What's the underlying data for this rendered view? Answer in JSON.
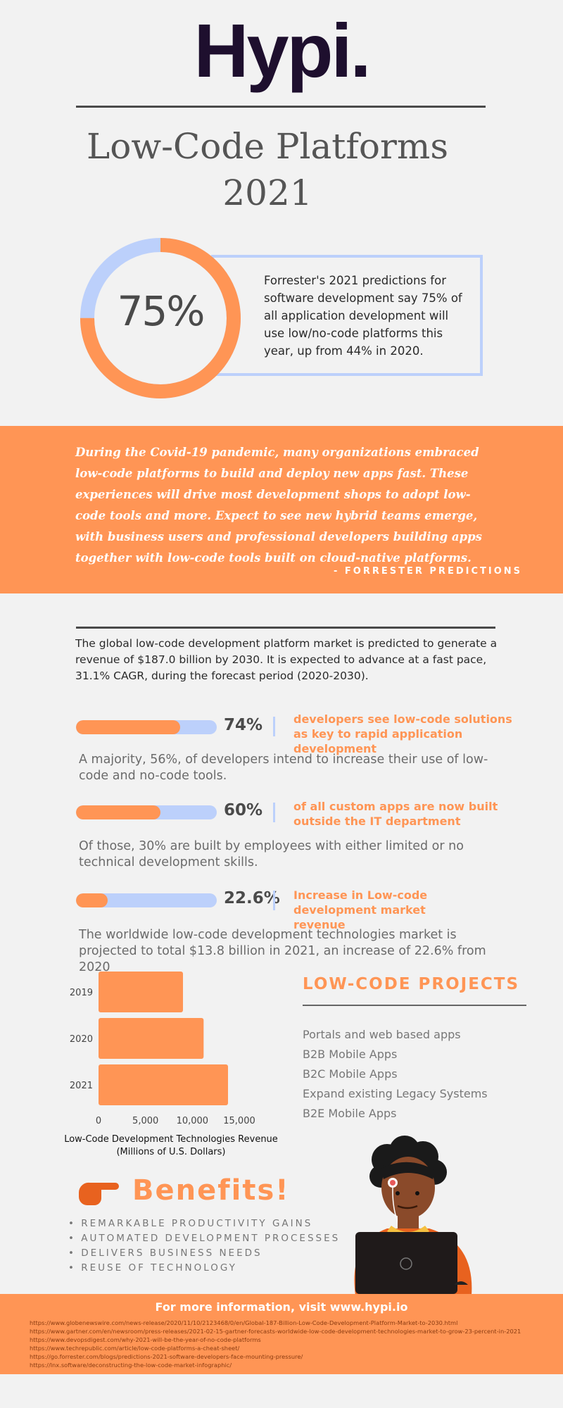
{
  "header": {
    "logo": "Hypi.",
    "title_line1": "Low-Code Platforms",
    "title_line2": "2021"
  },
  "hero_stat": {
    "value": "75%",
    "ring_fraction": 0.75,
    "text": "Forrester's 2021 predictions for software development say 75% of all application development will use low/no-code platforms this year, up from 44% in 2020."
  },
  "quote": {
    "text": "During the Covid-19 pandemic, many organizations embraced low-code platforms to build and deploy new apps fast. These experiences will drive most development shops to adopt low-code tools and more. Expect to see new hybrid teams emerge, with business users and professional developers building apps together with low-code tools built on cloud-native platforms.",
    "source": "- FORRESTER PREDICTIONS"
  },
  "market_text": "The global low-code development platform market is predicted to generate a revenue of $187.0 billion by 2030. It is expected to advance at a fast pace, 31.1% CAGR, during the forecast period (2020-2030).",
  "stats": [
    {
      "percent_label": "74%",
      "fraction": 0.74,
      "label": "developers see low-code solutions as key to rapid application development",
      "detail": "A majority, 56%, of developers intend to increase their use of low-code and no-code tools."
    },
    {
      "percent_label": "60%",
      "fraction": 0.6,
      "label": "of all custom apps are now built outside the IT department",
      "detail": "Of those, 30% are built by employees with either limited or no technical development skills."
    },
    {
      "percent_label": "22.6%",
      "fraction": 0.226,
      "label": "Increase  in Low-code development market revenue",
      "detail": "The worldwide low-code development technologies market is projected to total $13.8 billion in 2021, an increase of 22.6% from 2020"
    }
  ],
  "chart_data": {
    "type": "bar",
    "orientation": "horizontal",
    "categories": [
      "2019",
      "2020",
      "2021"
    ],
    "values": [
      9000,
      11200,
      13800
    ],
    "xlim": [
      0,
      15000
    ],
    "xticks": [
      "0",
      "5,000",
      "10,000",
      "15,000"
    ],
    "title": "",
    "xlabel": "Low-Code Development Technologies Revenue (Millions of U.S. Dollars)",
    "ylabel": "",
    "grid": false,
    "bar_color": "#ff9555"
  },
  "projects": {
    "heading": "LOW-CODE PROJECTS",
    "items": [
      "Portals and web based apps",
      "B2B Mobile Apps",
      "B2C Mobile Apps",
      "Expand existing Legacy Systems",
      "B2E Mobile Apps"
    ]
  },
  "benefits": {
    "title": "Benefits!",
    "icon": "pointing-hand-icon",
    "items": [
      "REMARKABLE PRODUCTIVITY GAINS",
      "AUTOMATED DEVELOPMENT PROCESSES",
      "DELIVERS BUSINESS NEEDS",
      "REUSE OF TECHNOLOGY"
    ]
  },
  "footer": {
    "heading": "For more information, visit www.hypi.io",
    "refs": [
      "https://www.globenewswire.com/news-release/2020/11/10/2123468/0/en/Global-187-Billion-Low-Code-Development-Platform-Market-to-2030.html",
      "https://www.gartner.com/en/newsroom/press-releases/2021-02-15-gartner-forecasts-worldwide-low-code-development-technologies-market-to-grow-23-percent-in-2021",
      "https://www.devopsdigest.com/why-2021-will-be-the-year-of-no-code-platforms",
      "https://www.techrepublic.com/article/low-code-platforms-a-cheat-sheet/",
      "https://go.forrester.com/blogs/predictions-2021-software-developers-face-mounting-pressure/",
      "https://lnx.software/deconstructing-the-low-code-market-infographic/"
    ]
  },
  "colors": {
    "accent": "#ff9555",
    "light_blue": "#bcd0fb",
    "logo": "#1e0f2e",
    "background": "#f2f2f2"
  }
}
